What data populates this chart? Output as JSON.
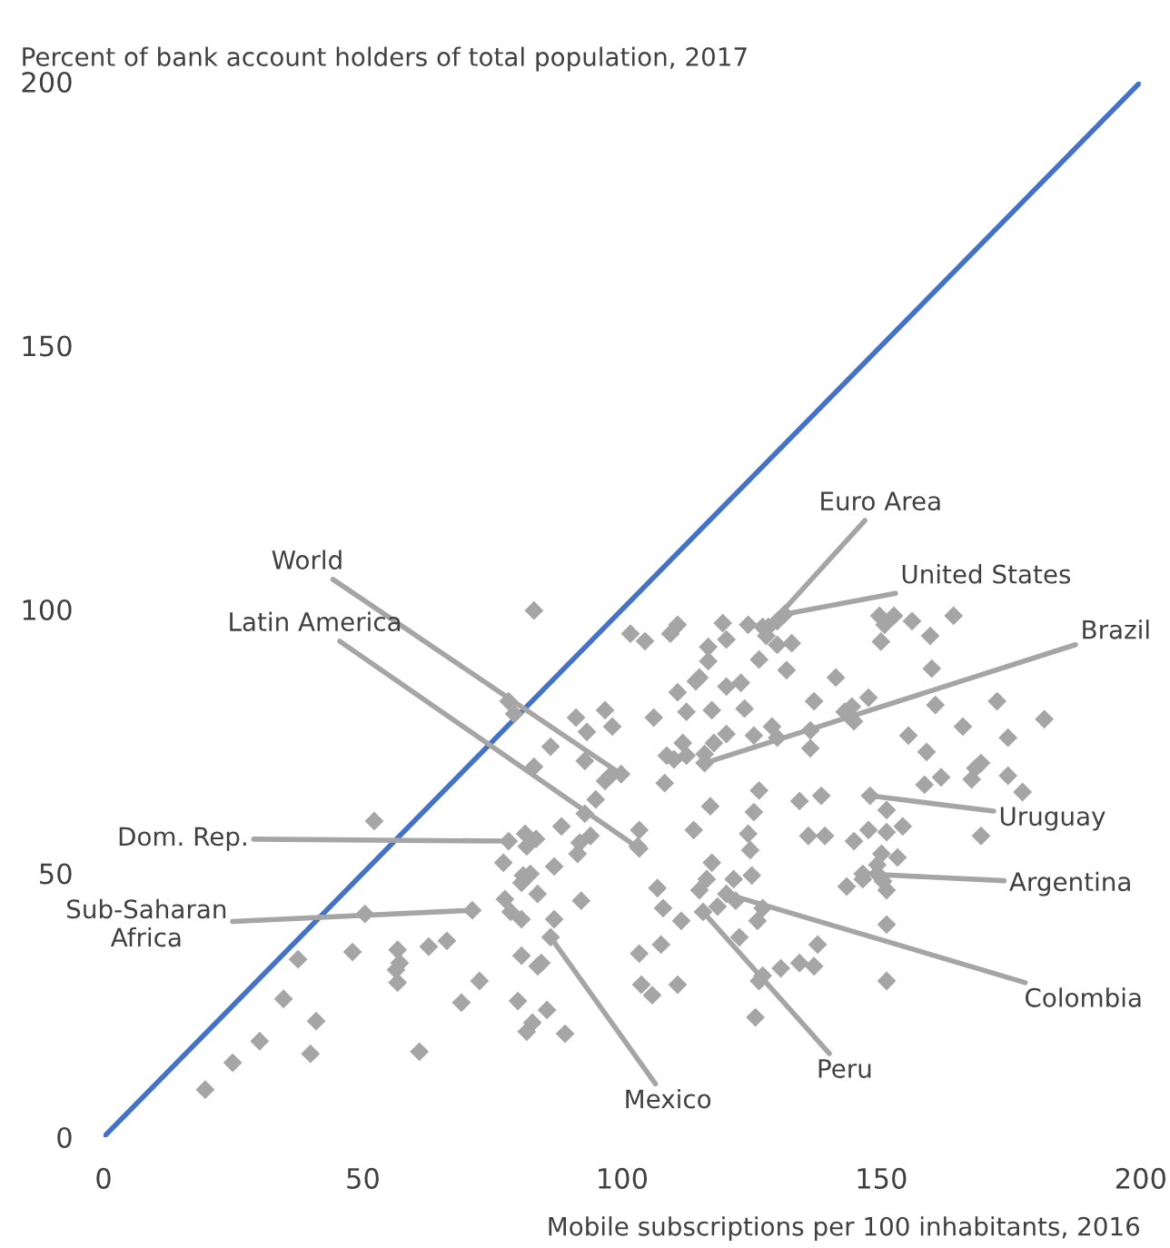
{
  "chart_data": {
    "type": "scatter",
    "ylabel": "Percent of bank account holders of total population, 2017",
    "xlabel": "Mobile subscriptions per 100 inhabitants, 2016",
    "xlim": [
      0,
      200
    ],
    "ylim": [
      0,
      200
    ],
    "xticks": [
      0,
      50,
      100,
      150,
      200
    ],
    "yticks": [
      0,
      50,
      100,
      150,
      200
    ],
    "grid": false,
    "marker": "diamond",
    "series": [
      {
        "color": "#a5a5a5",
        "x": [
          19.6,
          24.9,
          30.1,
          34.7,
          37.5,
          41.0,
          39.9,
          52.2,
          50.4,
          48.0,
          56.7,
          56.7,
          57.1,
          56.4,
          60.9,
          62.7,
          66.2,
          69.0,
          72.5,
          78.5,
          79.9,
          77.4,
          77.1,
          83.7,
          83.4,
          81.3,
          81.6,
          84.4,
          82.7,
          81.6,
          83.7,
          86.9,
          88.3,
          85.5,
          89.0,
          86.9,
          80.6,
          80.6,
          80.6,
          80.9,
          82.3,
          83.0,
          78.1,
          79.2,
          83.0,
          86.2,
          92.8,
          91.1,
          93.2,
          92.8,
          93.9,
          94.9,
          91.8,
          91.4,
          92.1,
          96.7,
          98.1,
          97.7,
          96.7,
          101.6,
          104.4,
          103.3,
          103.0,
          106.8,
          108.2,
          108.6,
          113.8,
          117.0,
          107.9,
          107.5,
          103.3,
          105.8,
          103.7,
          110.7,
          116.3,
          117.3,
          118.4,
          121.5,
          121.9,
          125.0,
          124.3,
          124.7,
          127.1,
          127.1,
          125.7,
          114.9,
          122.6,
          126.1,
          111.4,
          106.1,
          112.4,
          111.7,
          110.0,
          112.4,
          110.7,
          109.3,
          110.7,
          114.2,
          114.9,
          115.9,
          116.6,
          116.6,
          117.3,
          117.7,
          119.4,
          120.1,
          124.3,
          127.1,
          127.8,
          126.4,
          129.9,
          129.9,
          132.7,
          131.7,
          120.1,
          122.9,
          123.6,
          125.4,
          120.1,
          126.4,
          125.4,
          129.9,
          128.9,
          136.3,
          136.3,
          134.2,
          138.4,
          137.0,
          141.2,
          142.9,
          144.7,
          144.3,
          147.5,
          150.6,
          149.6,
          152.4,
          149.9,
          155.9,
          159.4,
          163.9,
          160.4,
          159.7,
          165.7,
          155.2,
          158.7,
          167.4,
          168.1,
          169.2,
          161.5,
          158.3,
          151.0,
          144.7,
          147.5,
          153.1,
          151.0,
          154.1,
          146.4,
          143.3,
          151.0,
          150.0,
          149.2,
          150.3,
          149.2,
          151.0,
          151.0,
          137.7,
          137.0,
          134.2,
          130.6,
          126.4,
          139.1,
          169.2,
          174.4,
          177.2,
          172.3,
          181.4,
          174.4,
          135.9,
          128.2,
          131.3,
          115.9,
          147.8,
          146.4,
          120.1,
          115.6,
          86.2,
          99.8,
          103.3,
          78.1,
          71.1
        ],
        "values": [
          9.0,
          14.1,
          18.2,
          26.2,
          33.7,
          22.0,
          15.8,
          59.9,
          42.3,
          35.1,
          29.3,
          35.5,
          33.0,
          31.7,
          16.2,
          36.1,
          37.2,
          25.5,
          29.6,
          42.7,
          25.8,
          45.1,
          52.0,
          46.1,
          56.5,
          57.5,
          55.1,
          33.0,
          21.7,
          20.0,
          32.4,
          41.3,
          58.9,
          24.1,
          19.6,
          51.3,
          34.4,
          41.3,
          48.2,
          49.6,
          49.9,
          99.8,
          82.6,
          80.2,
          70.2,
          74.0,
          71.3,
          79.5,
          76.8,
          61.3,
          57.1,
          64.0,
          55.8,
          53.7,
          44.8,
          80.9,
          77.8,
          68.5,
          67.5,
          95.4,
          94.0,
          58.2,
          55.1,
          47.2,
          67.1,
          72.3,
          58.2,
          62.7,
          43.4,
          36.5,
          34.8,
          26.9,
          28.9,
          28.9,
          48.9,
          52.0,
          43.7,
          48.9,
          44.8,
          49.6,
          57.5,
          54.4,
          43.4,
          30.6,
          22.7,
          46.8,
          37.9,
          41.0,
          41.0,
          79.5,
          80.6,
          74.7,
          71.6,
          72.3,
          97.1,
          95.4,
          84.3,
          86.4,
          87.1,
          72.6,
          92.9,
          90.2,
          80.9,
          74.7,
          97.4,
          94.3,
          97.1,
          96.7,
          95.0,
          90.5,
          93.3,
          97.8,
          93.6,
          88.5,
          85.4,
          86.1,
          81.2,
          76.1,
          76.4,
          65.7,
          61.6,
          75.7,
          77.8,
          77.1,
          73.7,
          63.7,
          64.7,
          82.6,
          87.1,
          80.6,
          78.8,
          81.6,
          83.3,
          97.1,
          98.8,
          98.8,
          93.9,
          97.8,
          95.0,
          98.8,
          81.9,
          88.8,
          77.8,
          76.1,
          73.0,
          67.8,
          69.9,
          70.9,
          68.2,
          66.8,
          62.0,
          56.1,
          58.2,
          53.0,
          57.8,
          58.9,
          48.9,
          47.5,
          46.8,
          53.7,
          51.6,
          48.5,
          49.9,
          40.3,
          29.6,
          36.5,
          32.4,
          33.0,
          32.0,
          29.6,
          57.1,
          57.1,
          68.5,
          65.4,
          82.6,
          79.2,
          75.7,
          57.1,
          96.7,
          99.1,
          70.9,
          64.7,
          49.9,
          46.1,
          42.7,
          37.9,
          68.8,
          54.7,
          56.1,
          43.0
        ]
      },
      {
        "type": "line",
        "color": "#4472c4",
        "marker": "none",
        "x": [
          0,
          200
        ],
        "values": [
          0,
          200
        ]
      }
    ],
    "annotations": [
      {
        "text": "Euro Area",
        "x": 128.2,
        "y": 96.7
      },
      {
        "text": "United States",
        "x": 131.3,
        "y": 99.1
      },
      {
        "text": "Brazil",
        "x": 115.9,
        "y": 70.9
      },
      {
        "text": "Uruguay",
        "x": 147.8,
        "y": 64.7
      },
      {
        "text": "Argentina",
        "x": 146.4,
        "y": 49.9
      },
      {
        "text": "Colombia",
        "x": 120.1,
        "y": 46.1
      },
      {
        "text": "Peru",
        "x": 115.6,
        "y": 42.7
      },
      {
        "text": "Mexico",
        "x": 86.2,
        "y": 37.9
      },
      {
        "text": "World",
        "x": 99.8,
        "y": 68.8
      },
      {
        "text": "Latin America",
        "x": 103.3,
        "y": 54.7
      },
      {
        "text": "Dom. Rep.",
        "x": 78.1,
        "y": 56.1
      },
      {
        "text": "Sub-Saharan\nAfrica",
        "x": 71.1,
        "y": 43.0
      }
    ]
  }
}
